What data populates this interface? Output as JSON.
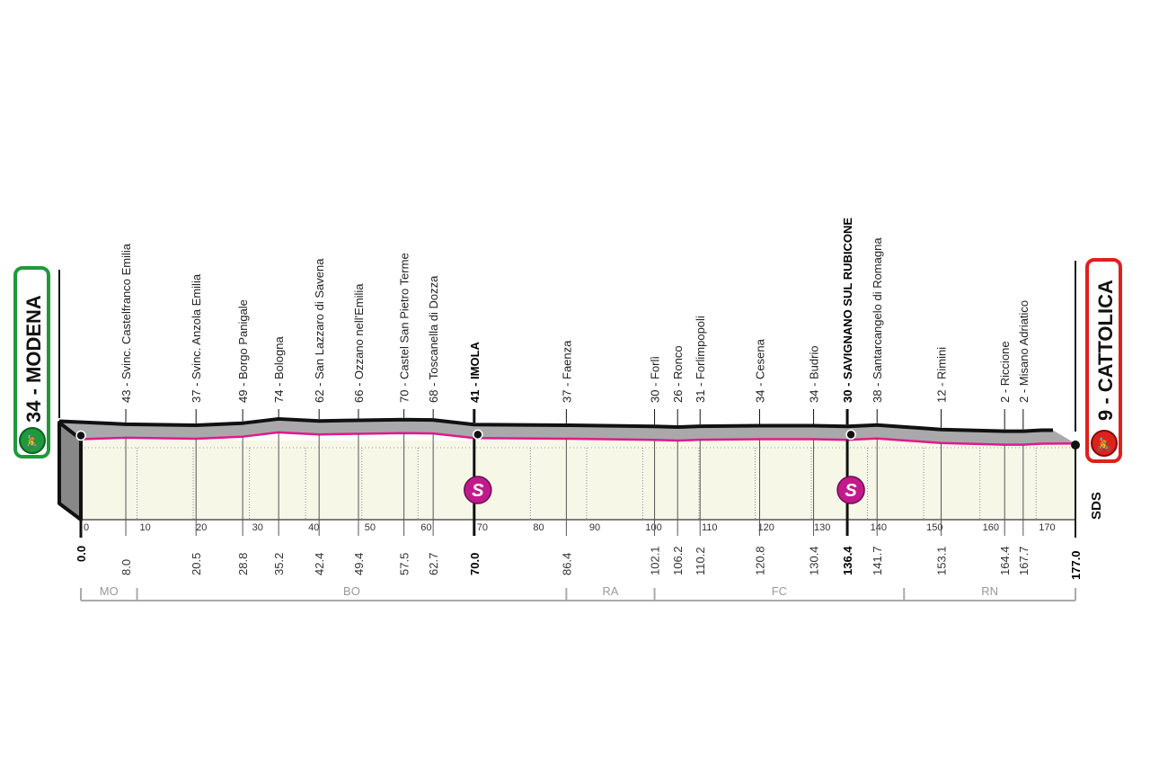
{
  "chart_data": {
    "type": "area",
    "title": "",
    "xlabel": "",
    "ylabel": "",
    "x_unit": "km",
    "xlim": [
      0,
      177
    ],
    "km_ticks": [
      0,
      10,
      20,
      30,
      40,
      50,
      60,
      70,
      80,
      90,
      100,
      110,
      120,
      130,
      140,
      150,
      160,
      170
    ],
    "start": {
      "label": "34 - MODENA",
      "km": 0.0,
      "altitude": 34,
      "color": "#1e9a3a"
    },
    "finish": {
      "label": "9 - CATTOLICA",
      "km": 177.0,
      "altitude": 9,
      "color": "#e0201b"
    },
    "waypoints": [
      {
        "km": 8.0,
        "altitude": 43,
        "label": "43 - Svinc. Castelfranco Emilia",
        "dist": "8.0",
        "bold": false
      },
      {
        "km": 20.5,
        "altitude": 37,
        "label": "37 - Svinc. Anzola Emilia",
        "dist": "20.5",
        "bold": false
      },
      {
        "km": 28.8,
        "altitude": 49,
        "label": "49 - Borgo Panigale",
        "dist": "28.8",
        "bold": false
      },
      {
        "km": 35.2,
        "altitude": 74,
        "label": "74 - Bologna",
        "dist": "35.2",
        "bold": false
      },
      {
        "km": 42.4,
        "altitude": 62,
        "label": "62 - San Lazzaro di Savena",
        "dist": "42.4",
        "bold": false
      },
      {
        "km": 49.4,
        "altitude": 66,
        "label": "66 - Ozzano nell'Emilia",
        "dist": "49.4",
        "bold": false
      },
      {
        "km": 57.5,
        "altitude": 70,
        "label": "70 - Castel San Pietro Terme",
        "dist": "57.5",
        "bold": false
      },
      {
        "km": 62.7,
        "altitude": 68,
        "label": "68 - Toscanella di Dozza",
        "dist": "62.7",
        "bold": false
      },
      {
        "km": 70.0,
        "altitude": 41,
        "label": "41 - IMOLA",
        "dist": "70.0",
        "bold": true
      },
      {
        "km": 86.4,
        "altitude": 37,
        "label": "37 - Faenza",
        "dist": "86.4",
        "bold": false
      },
      {
        "km": 102.1,
        "altitude": 30,
        "label": "30 - Forlì",
        "dist": "102.1",
        "bold": false
      },
      {
        "km": 106.2,
        "altitude": 26,
        "label": "26 - Ronco",
        "dist": "106.2",
        "bold": false
      },
      {
        "km": 110.2,
        "altitude": 31,
        "label": "31 - Forlimpopoli",
        "dist": "110.2",
        "bold": false
      },
      {
        "km": 120.8,
        "altitude": 34,
        "label": "34 - Cesena",
        "dist": "120.8",
        "bold": false
      },
      {
        "km": 130.4,
        "altitude": 34,
        "label": "34 - Budrio",
        "dist": "130.4",
        "bold": false
      },
      {
        "km": 136.4,
        "altitude": 30,
        "label": "30 - SAVIGNANO SUL RUBICONE",
        "dist": "136.4",
        "bold": true
      },
      {
        "km": 141.7,
        "altitude": 38,
        "label": "38 - Santarcangelo di Romagna",
        "dist": "141.7",
        "bold": false
      },
      {
        "km": 153.1,
        "altitude": 12,
        "label": "12 - Rimini",
        "dist": "153.1",
        "bold": false
      },
      {
        "km": 164.4,
        "altitude": 2,
        "label": "2 - Riccione",
        "dist": "164.4",
        "bold": false
      },
      {
        "km": 167.7,
        "altitude": 2,
        "label": "2 - Misano Adriatico",
        "dist": "167.7",
        "bold": false
      }
    ],
    "sprints": [
      {
        "km": 70.0,
        "label": "S"
      },
      {
        "km": 136.4,
        "label": "S"
      }
    ],
    "provinces": [
      {
        "label": "MO",
        "from": 0,
        "to": 10
      },
      {
        "label": "BO",
        "from": 10,
        "to": 86.4
      },
      {
        "label": "RA",
        "from": 86.4,
        "to": 102.1
      },
      {
        "label": "FC",
        "from": 102.1,
        "to": 146.5
      },
      {
        "label": "RN",
        "from": 146.5,
        "to": 177
      }
    ],
    "start_dist": "0.0",
    "finish_dist": "177.0",
    "logo": "SDS",
    "colors": {
      "profile_top": "#a9a9ab",
      "face": "#f7f7e8",
      "pink": "#e0198a",
      "sprint": "#c21a8c"
    }
  }
}
